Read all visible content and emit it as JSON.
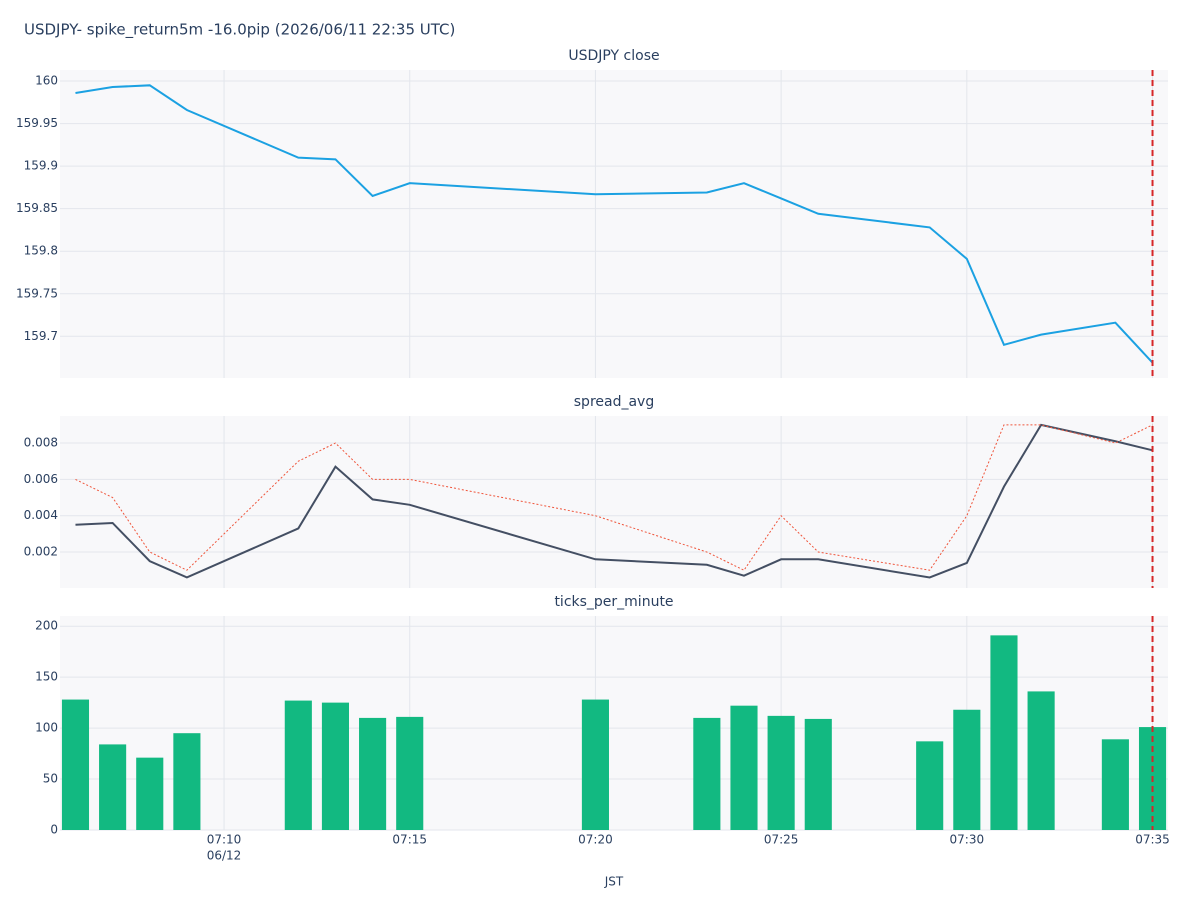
{
  "title": "USDJPY- spike_return5m -16.0pip (2026/06/11 22:35 UTC)",
  "x_label": "JST",
  "date_label": "06/12",
  "event_x": "07:35",
  "event_color": "#d62728",
  "xlim": [
    "07:05:35",
    "07:35:25"
  ],
  "xticks": [
    "07:10",
    "07:15",
    "07:20",
    "07:25",
    "07:30",
    "07:35"
  ],
  "grid": true,
  "chart_data": [
    {
      "type": "line",
      "title": "USDJPY close",
      "x": [
        "07:06",
        "07:07",
        "07:08",
        "07:09",
        "07:12",
        "07:13",
        "07:14",
        "07:15",
        "07:20",
        "07:23",
        "07:24",
        "07:25",
        "07:26",
        "07:29",
        "07:30",
        "07:31",
        "07:32",
        "07:34",
        "07:35"
      ],
      "series": [
        {
          "color": "#1ba1e2",
          "dash": "solid",
          "values": [
            159.986,
            159.993,
            159.995,
            159.966,
            159.91,
            159.908,
            159.865,
            159.88,
            159.867,
            159.869,
            159.88,
            159.862,
            159.844,
            159.828,
            159.791,
            159.69,
            159.702,
            159.716,
            159.669
          ]
        }
      ],
      "ylim": [
        159.651,
        160.013
      ],
      "yticks": [
        159.7,
        159.75,
        159.8,
        159.85,
        159.9,
        159.95,
        160
      ]
    },
    {
      "type": "line",
      "title": "spread_avg",
      "x": [
        "07:06",
        "07:07",
        "07:08",
        "07:09",
        "07:12",
        "07:13",
        "07:14",
        "07:15",
        "07:20",
        "07:23",
        "07:24",
        "07:25",
        "07:26",
        "07:29",
        "07:30",
        "07:31",
        "07:32",
        "07:34",
        "07:35"
      ],
      "series": [
        {
          "color": "#444f63",
          "dash": "solid",
          "values": [
            0.0035,
            0.0036,
            0.0015,
            0.0006,
            0.0033,
            0.0067,
            0.0049,
            0.0046,
            0.0016,
            0.0013,
            0.0007,
            0.0016,
            0.0016,
            0.0006,
            0.0014,
            0.0056,
            0.009,
            0.0081,
            0.0076
          ]
        },
        {
          "color": "#ef553b",
          "dash": "dotted",
          "values": [
            0.006,
            0.005,
            0.002,
            0.001,
            0.007,
            0.008,
            0.006,
            0.006,
            0.004,
            0.002,
            0.001,
            0.004,
            0.002,
            0.001,
            0.004,
            0.009,
            0.009,
            0.008,
            0.009
          ]
        }
      ],
      "ylim": [
        2e-05,
        0.00949
      ],
      "yticks": [
        0.002,
        0.004,
        0.006,
        0.008
      ]
    },
    {
      "type": "bar",
      "title": "ticks_per_minute",
      "x": [
        "07:06",
        "07:07",
        "07:08",
        "07:09",
        "07:12",
        "07:13",
        "07:14",
        "07:15",
        "07:20",
        "07:23",
        "07:24",
        "07:25",
        "07:26",
        "07:29",
        "07:30",
        "07:31",
        "07:32",
        "07:34",
        "07:35"
      ],
      "series": [
        {
          "color": "#12b981",
          "dash": "solid",
          "values": [
            128,
            84,
            71,
            95,
            127,
            125,
            110,
            111,
            128,
            110,
            122,
            112,
            109,
            87,
            118,
            191,
            136,
            89,
            101
          ]
        }
      ],
      "ylim": [
        0,
        210
      ],
      "yticks": [
        0,
        50,
        100,
        150,
        200
      ]
    }
  ]
}
